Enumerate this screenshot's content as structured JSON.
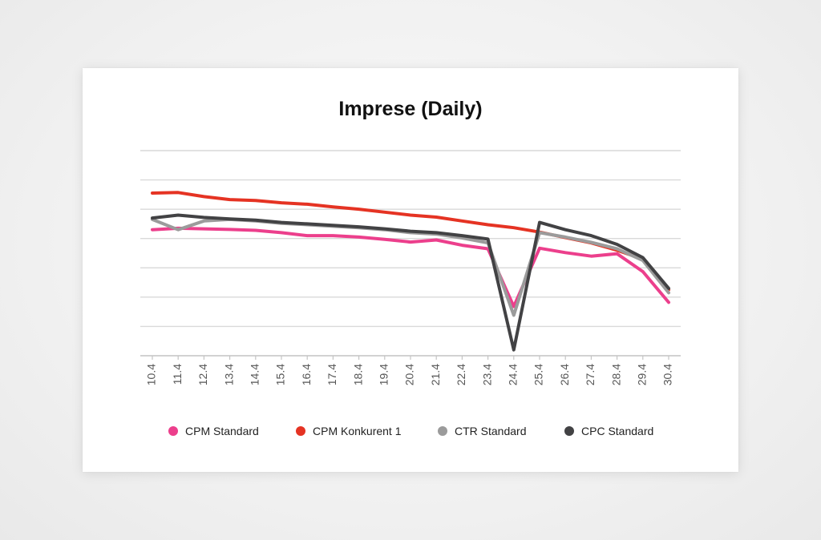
{
  "chart_data": {
    "type": "line",
    "title": "Imprese (Daily)",
    "xlabel": "",
    "ylabel": "",
    "categories": [
      "10.4",
      "11.4",
      "12.4",
      "13.4",
      "14.4",
      "15.4",
      "16.4",
      "17.4",
      "18.4",
      "19.4",
      "20.4",
      "21.4",
      "22.4",
      "23.4",
      "24.4",
      "25.4",
      "26.4",
      "27.4",
      "28.4",
      "29.4",
      "30.4"
    ],
    "ylim": [
      0,
      7
    ],
    "grid": true,
    "legend_position": "bottom",
    "series": [
      {
        "name": "CPM Standard",
        "color": "#ec3f8c",
        "values": [
          4.3,
          4.35,
          4.33,
          4.31,
          4.28,
          4.2,
          4.1,
          4.1,
          4.05,
          3.97,
          3.88,
          3.95,
          3.77,
          3.65,
          1.68,
          3.67,
          3.52,
          3.4,
          3.48,
          2.87,
          1.82
        ]
      },
      {
        "name": "CPM Konkurent 1",
        "color": "#e53323",
        "values": [
          5.55,
          5.57,
          5.43,
          5.33,
          5.3,
          5.22,
          5.17,
          5.08,
          5.0,
          4.9,
          4.8,
          4.73,
          4.6,
          4.47,
          4.37,
          4.22,
          4.03,
          3.85,
          3.6,
          3.3,
          2.25
        ]
      },
      {
        "name": "CTR Standard",
        "color": "#9b9b9b",
        "values": [
          4.65,
          4.3,
          4.6,
          4.65,
          4.6,
          4.52,
          4.47,
          4.42,
          4.37,
          4.3,
          4.2,
          4.15,
          4.02,
          3.85,
          1.38,
          4.2,
          4.05,
          3.87,
          3.65,
          3.25,
          2.15
        ]
      },
      {
        "name": "CPC Standard",
        "color": "#424244",
        "values": [
          4.7,
          4.8,
          4.72,
          4.67,
          4.63,
          4.55,
          4.5,
          4.45,
          4.4,
          4.33,
          4.25,
          4.2,
          4.1,
          3.98,
          0.2,
          4.55,
          4.3,
          4.1,
          3.8,
          3.35,
          2.3
        ]
      }
    ]
  }
}
